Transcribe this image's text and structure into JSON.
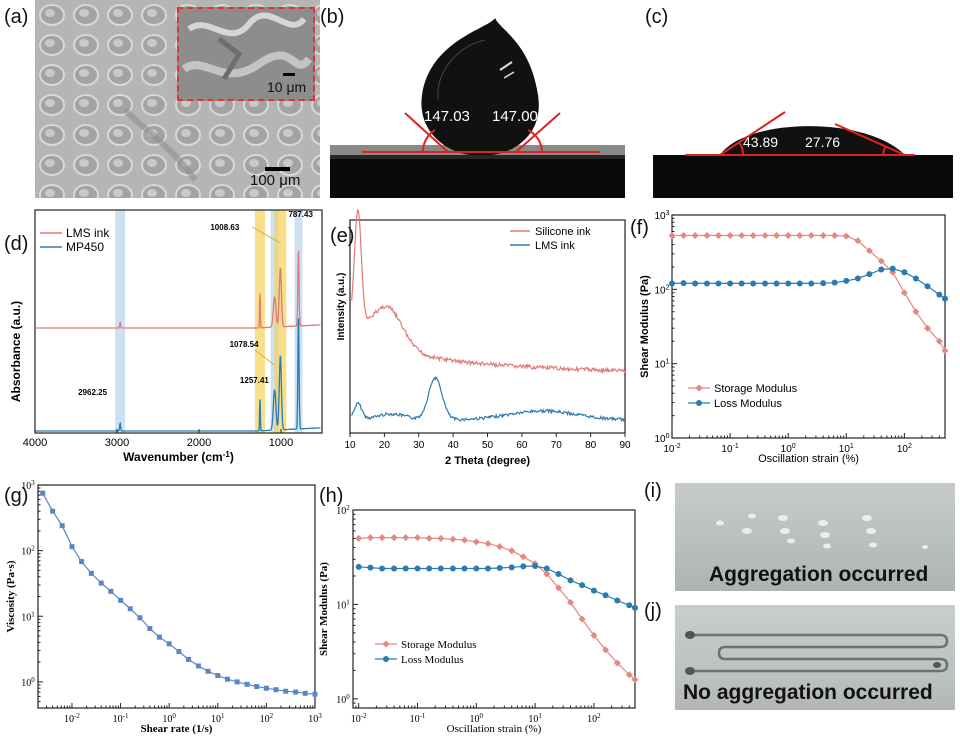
{
  "labels": {
    "a": "(a)",
    "b": "(b)",
    "c": "(c)",
    "d": "(d)",
    "e": "(e)",
    "f": "(f)",
    "g": "(g)",
    "h": "(h)",
    "i": "(i)",
    "j": "(j)"
  },
  "panel_a": {
    "scale_main": "100 μm",
    "scale_inset": "10 μm"
  },
  "panel_b": {
    "angle_left": "147.03",
    "angle_right": "147.00"
  },
  "panel_c": {
    "angle_left": "43.89",
    "angle_right": "27.76"
  },
  "panel_i": {
    "caption": "Aggregation occurred"
  },
  "panel_j": {
    "caption": "No aggregation occurred"
  },
  "colors": {
    "red": "#e07a76",
    "blue": "#2b7bb0",
    "salmon": "#e48882",
    "steel": "#5b86c6"
  },
  "chart_data": [
    {
      "id": "d",
      "type": "line",
      "title": "",
      "xlabel": "Wavenumber (cm-1)",
      "ylabel": "Absorbance (a.u.)",
      "xlim": [
        4000,
        500
      ],
      "xticks": [
        4000,
        3000,
        2000,
        1000
      ],
      "series": [
        {
          "name": "LMS ink"
        },
        {
          "name": "MP450"
        }
      ],
      "annotations": [
        "1008.63",
        "787.43",
        "1078.54",
        "1257.41",
        "2962.25"
      ],
      "peaks": [
        2962.25,
        1257.41,
        1078.54,
        1008.63,
        787.43
      ]
    },
    {
      "id": "e",
      "type": "line",
      "xlabel": "2 Theta (degree)",
      "ylabel": "Intensity (a.u.)",
      "xlim": [
        10,
        90
      ],
      "xticks": [
        10,
        20,
        30,
        40,
        50,
        60,
        70,
        80,
        90
      ],
      "series": [
        {
          "name": "Silicone ink"
        },
        {
          "name": "LMS ink"
        }
      ]
    },
    {
      "id": "f",
      "type": "line",
      "xlabel": "Oscillation strain (%)",
      "ylabel": "Shear Modulus (Pa)",
      "xscale": "log",
      "yscale": "log",
      "xlim": [
        0.01,
        500
      ],
      "ylim": [
        1,
        1000
      ],
      "xticks": [
        "10-2",
        "10-1",
        "100",
        "101",
        "102"
      ],
      "yticks": [
        "100",
        "101",
        "102",
        "103"
      ],
      "series": [
        {
          "name": "Storage Modulus",
          "x": [
            0.01,
            0.0158,
            0.025,
            0.04,
            0.063,
            0.1,
            0.158,
            0.25,
            0.4,
            0.63,
            1,
            1.58,
            2.5,
            4,
            6.3,
            10,
            15.8,
            25,
            40,
            63,
            100,
            158,
            250,
            400,
            500
          ],
          "y": [
            530,
            530,
            530,
            530,
            530,
            530,
            530,
            530,
            530,
            530,
            530,
            530,
            530,
            530,
            530,
            520,
            450,
            330,
            240,
            170,
            90,
            50,
            30,
            20,
            15
          ]
        },
        {
          "name": "Loss Modulus",
          "x": [
            0.01,
            0.0158,
            0.025,
            0.04,
            0.063,
            0.1,
            0.158,
            0.25,
            0.4,
            0.63,
            1,
            1.58,
            2.5,
            4,
            6.3,
            10,
            15.8,
            25,
            40,
            63,
            100,
            158,
            250,
            400,
            500
          ],
          "y": [
            120,
            121,
            120,
            120,
            120,
            120,
            120,
            120,
            120,
            120,
            120,
            120,
            120,
            121,
            123,
            130,
            140,
            160,
            185,
            190,
            170,
            140,
            110,
            85,
            75
          ]
        }
      ]
    },
    {
      "id": "g",
      "type": "line",
      "xlabel": "Shear rate (1/s)",
      "ylabel": "Viscosity (Pa·s)",
      "xscale": "log",
      "yscale": "log",
      "xlim": [
        0.002,
        1000
      ],
      "ylim": [
        0.4,
        1000
      ],
      "xticks": [
        "10-2",
        "10-1",
        "100",
        "101",
        "102",
        "103"
      ],
      "yticks": [
        "100",
        "101",
        "102",
        "103"
      ],
      "series": [
        {
          "name": "Viscosity",
          "x": [
            0.0025,
            0.004,
            0.0063,
            0.01,
            0.0158,
            0.025,
            0.04,
            0.063,
            0.1,
            0.158,
            0.25,
            0.4,
            0.63,
            1,
            1.58,
            2.5,
            4,
            6.3,
            10,
            15.8,
            25,
            40,
            63,
            100,
            158,
            250,
            400,
            630,
            1000
          ],
          "y": [
            750,
            400,
            240,
            115,
            68,
            45,
            32,
            24,
            17.5,
            13,
            9.5,
            6.5,
            4.8,
            3.8,
            2.9,
            2.2,
            1.75,
            1.45,
            1.25,
            1.1,
            1.0,
            0.92,
            0.85,
            0.8,
            0.76,
            0.72,
            0.7,
            0.67,
            0.65
          ]
        }
      ]
    },
    {
      "id": "h",
      "type": "line",
      "xlabel": "Oscillation strain (%)",
      "ylabel": "Shear Modulus (Pa)",
      "xscale": "log",
      "yscale": "log",
      "xlim": [
        0.008,
        500
      ],
      "ylim": [
        0.8,
        100
      ],
      "xticks": [
        "10-2",
        "10-1",
        "100",
        "101",
        "102"
      ],
      "yticks": [
        "100",
        "101",
        "102"
      ],
      "series": [
        {
          "name": "Storage Modulus",
          "x": [
            0.01,
            0.0158,
            0.025,
            0.04,
            0.063,
            0.1,
            0.158,
            0.25,
            0.4,
            0.63,
            1,
            1.58,
            2.5,
            4,
            6.3,
            10,
            15.8,
            25,
            40,
            63,
            100,
            158,
            250,
            400,
            500
          ],
          "y": [
            50,
            51,
            51,
            51,
            51,
            51,
            50,
            50,
            49,
            48,
            46,
            44,
            41,
            37,
            32,
            27,
            21,
            15,
            10.5,
            7,
            4.7,
            3.3,
            2.4,
            1.8,
            1.6
          ]
        },
        {
          "name": "Loss Modulus",
          "x": [
            0.01,
            0.0158,
            0.025,
            0.04,
            0.063,
            0.1,
            0.158,
            0.25,
            0.4,
            0.63,
            1,
            1.58,
            2.5,
            4,
            6.3,
            10,
            15.8,
            25,
            40,
            63,
            100,
            158,
            250,
            400,
            500
          ],
          "y": [
            25,
            24.5,
            24,
            24,
            24,
            24,
            24,
            24,
            24,
            24,
            24,
            24,
            24.3,
            24.7,
            25.3,
            25.5,
            24,
            21,
            18,
            16,
            14,
            12.5,
            11,
            9.8,
            9.2
          ]
        }
      ]
    }
  ]
}
